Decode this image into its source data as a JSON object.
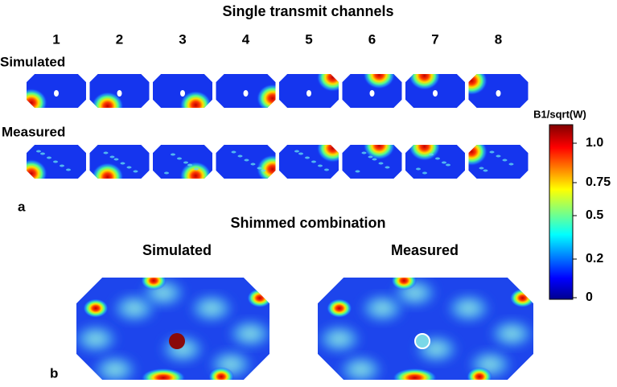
{
  "figure": {
    "title": "Single transmit channels",
    "channels": [
      "1",
      "2",
      "3",
      "4",
      "5",
      "6",
      "7",
      "8"
    ],
    "rows": [
      "Simulated",
      "Measured"
    ],
    "panel_a": "a",
    "subtitle": "Shimmed combination",
    "panel_b_columns": [
      "Simulated",
      "Measured"
    ],
    "panel_b": "b",
    "colorbar": {
      "label": "B1/sqrt(W)",
      "ticks": [
        "1.0",
        "0.75",
        "0.5",
        "0.2",
        "0"
      ]
    }
  }
}
